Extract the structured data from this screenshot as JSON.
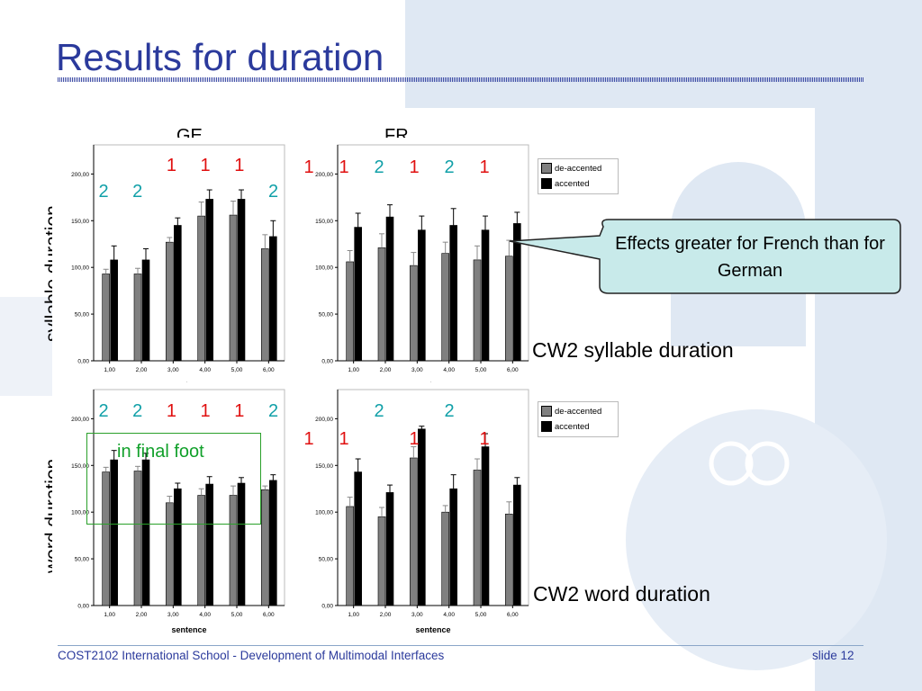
{
  "slide": {
    "title": "Results for duration",
    "footer_left": "COST2102 International School - Development of Multimodal Interfaces",
    "footer_right": "slide 12",
    "column_heads": [
      "GE",
      "FR"
    ],
    "row_labels": [
      "syllable duration",
      "word duration"
    ],
    "callout": "Effects greater for French than for German",
    "caption_top": "CW2 syllable duration",
    "caption_bottom": "CW2 word duration",
    "green_box_label": "in final foot"
  },
  "colors": {
    "title": "#2b3a9c",
    "de_accented_bar": "#808080",
    "accented_bar": "#000000",
    "sig_red": "#e01010",
    "sig_teal": "#11a0a8",
    "callout_fill": "#c8eaea",
    "callout_border": "#222222",
    "green_box": "#2aa02a"
  },
  "legend": {
    "entries": [
      "de-accented",
      "accented"
    ]
  },
  "significance": {
    "syll_GE": [
      {
        "sentence": 1,
        "label": "2",
        "color": "teal"
      },
      {
        "sentence": 2,
        "label": "2",
        "color": "teal"
      },
      {
        "sentence": 3,
        "label": "1",
        "color": "red"
      },
      {
        "sentence": 4,
        "label": "1",
        "color": "red"
      },
      {
        "sentence": 5,
        "label": "1",
        "color": "red"
      },
      {
        "sentence": 6,
        "label": "2",
        "color": "teal"
      }
    ],
    "syll_FR": [
      {
        "sentence": 1,
        "label": "1",
        "color": "red"
      },
      {
        "sentence": 2,
        "label": "1",
        "color": "red"
      },
      {
        "sentence": 3,
        "label": "2",
        "color": "teal"
      },
      {
        "sentence": 4,
        "label": "1",
        "color": "red"
      },
      {
        "sentence": 5,
        "label": "2",
        "color": "teal"
      },
      {
        "sentence": 6,
        "label": "1",
        "color": "red"
      }
    ],
    "word_GE": [
      {
        "sentence": 1,
        "label": "2",
        "color": "teal"
      },
      {
        "sentence": 2,
        "label": "2",
        "color": "teal"
      },
      {
        "sentence": 3,
        "label": "1",
        "color": "red"
      },
      {
        "sentence": 4,
        "label": "1",
        "color": "red"
      },
      {
        "sentence": 5,
        "label": "1",
        "color": "red"
      },
      {
        "sentence": 6,
        "label": "2",
        "color": "teal"
      }
    ],
    "word_FR": [
      {
        "sentence": 1,
        "label": "1",
        "color": "red"
      },
      {
        "sentence": 2,
        "label": "1",
        "color": "red"
      },
      {
        "sentence": 3,
        "label": "2",
        "color": "teal"
      },
      {
        "sentence": 4,
        "label": "1",
        "color": "red"
      },
      {
        "sentence": 5,
        "label": "2",
        "color": "teal"
      },
      {
        "sentence": 6,
        "label": "1",
        "color": "red"
      }
    ]
  },
  "chart_data": [
    {
      "id": "syll_GE",
      "type": "bar",
      "xlabel": "sentence",
      "ylim": [
        0,
        210
      ],
      "categories": [
        "1,00",
        "2,00",
        "3,00",
        "4,00",
        "5,00",
        "6,00"
      ],
      "yticks": [
        "0,00",
        "50,00",
        "100,00",
        "150,00",
        "200,00"
      ],
      "series": [
        {
          "name": "de-accented",
          "values": [
            93,
            93,
            127,
            155,
            156,
            120
          ],
          "err": [
            5,
            6,
            5,
            15,
            15,
            15
          ]
        },
        {
          "name": "accented",
          "values": [
            108,
            108,
            145,
            173,
            173,
            133
          ],
          "err": [
            15,
            12,
            8,
            10,
            10,
            17
          ]
        }
      ]
    },
    {
      "id": "syll_FR",
      "type": "bar",
      "xlabel": "sentence",
      "ylim": [
        0,
        210
      ],
      "categories": [
        "1,00",
        "2,00",
        "3,00",
        "4,00",
        "5,00",
        "6,00"
      ],
      "yticks": [
        "0,00",
        "50,00",
        "100,00",
        "150,00",
        "200,00"
      ],
      "series": [
        {
          "name": "de-accented",
          "values": [
            106,
            121,
            102,
            115,
            108,
            112
          ],
          "err": [
            12,
            15,
            14,
            12,
            15,
            17
          ]
        },
        {
          "name": "accented",
          "values": [
            143,
            154,
            140,
            145,
            140,
            147
          ],
          "err": [
            15,
            13,
            15,
            18,
            15,
            12
          ]
        }
      ]
    },
    {
      "id": "word_GE",
      "type": "bar",
      "xlabel": "sentence",
      "ylim": [
        0,
        210
      ],
      "categories": [
        "1,00",
        "2,00",
        "3,00",
        "4,00",
        "5,00",
        "6,00"
      ],
      "yticks": [
        "0,00",
        "50,00",
        "100,00",
        "150,00",
        "200,00"
      ],
      "series": [
        {
          "name": "de-accented",
          "values": [
            143,
            144,
            110,
            118,
            118,
            124
          ],
          "err": [
            5,
            5,
            7,
            7,
            10,
            4
          ]
        },
        {
          "name": "accented",
          "values": [
            156,
            156,
            125,
            130,
            131,
            134
          ],
          "err": [
            10,
            7,
            6,
            8,
            6,
            6
          ]
        }
      ]
    },
    {
      "id": "word_FR",
      "type": "bar",
      "xlabel": "sentence",
      "ylim": [
        0,
        210
      ],
      "categories": [
        "1,00",
        "2,00",
        "3,00",
        "4,00",
        "5,00",
        "6,00"
      ],
      "yticks": [
        "0,00",
        "50,00",
        "100,00",
        "150,00",
        "200,00"
      ],
      "series": [
        {
          "name": "de-accented",
          "values": [
            106,
            95,
            158,
            100,
            145,
            98
          ],
          "err": [
            10,
            10,
            12,
            7,
            12,
            13
          ]
        },
        {
          "name": "accented",
          "values": [
            143,
            121,
            189,
            125,
            170,
            129
          ],
          "err": [
            14,
            8,
            3,
            15,
            14,
            8
          ]
        }
      ]
    }
  ]
}
